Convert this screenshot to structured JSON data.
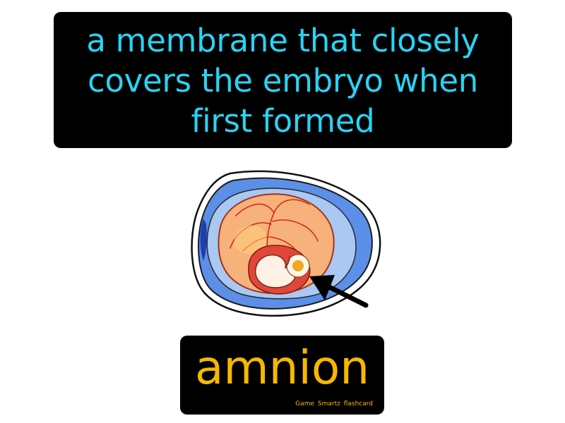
{
  "definition": {
    "text": "a membrane that closely covers the embryo when first formed",
    "color": "#29d3f5"
  },
  "illustration": {
    "subject": "embryo-in-amnion",
    "pointer": "arrow-icon"
  },
  "term": {
    "text": "amnion",
    "color": "#f5b800"
  },
  "brand": {
    "text": "Game Smartz flashcard"
  }
}
